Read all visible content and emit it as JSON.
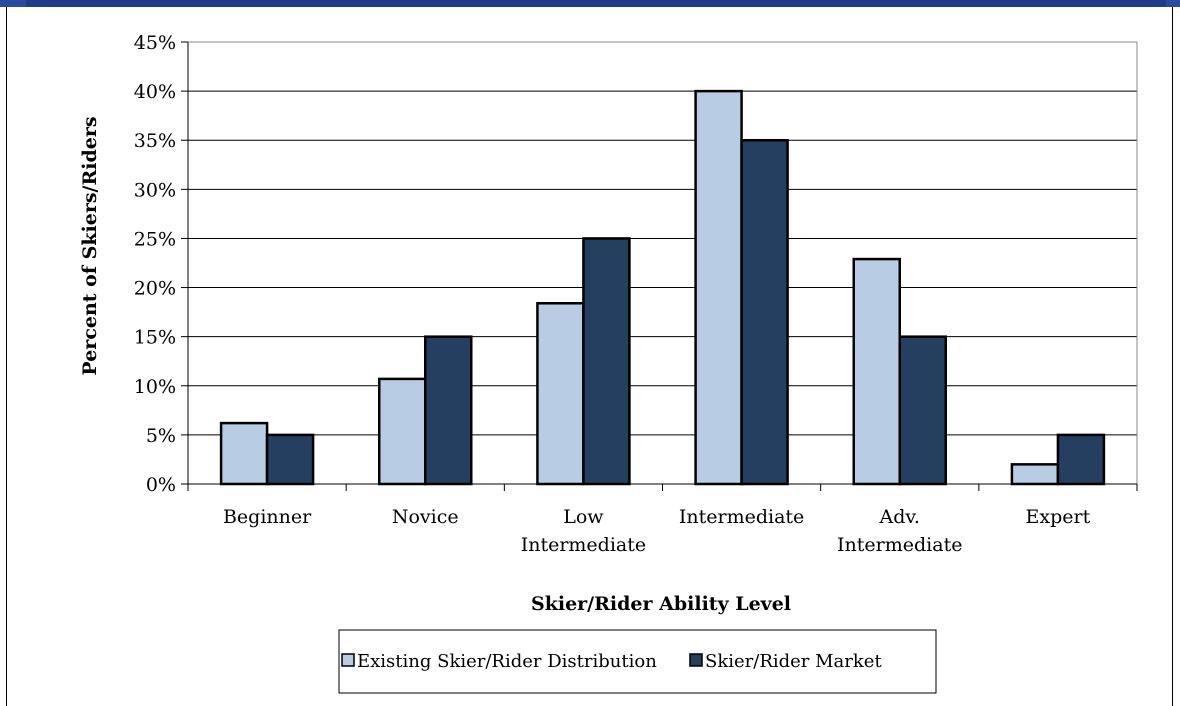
{
  "colors": {
    "series1": "#b8cce4",
    "series2": "#243f60",
    "stroke": "#000000",
    "gridline": "#000000",
    "topbar": "#1f3c88"
  },
  "chart_data": {
    "type": "bar",
    "categories": [
      [
        "Beginner"
      ],
      [
        "Novice"
      ],
      [
        "Low",
        "Intermediate"
      ],
      [
        "Intermediate"
      ],
      [
        "Adv.",
        "Intermediate"
      ],
      [
        "Expert"
      ]
    ],
    "series": [
      {
        "name": "Existing Skier/Rider Distribution",
        "values": [
          6.2,
          10.7,
          18.4,
          40,
          22.9,
          2
        ]
      },
      {
        "name": "Skier/Rider Market",
        "values": [
          5,
          15,
          25,
          35,
          15,
          5
        ]
      }
    ],
    "yticks": [
      "0%",
      "5%",
      "10%",
      "15%",
      "20%",
      "25%",
      "30%",
      "35%",
      "40%",
      "45%"
    ],
    "ylim": [
      0,
      45
    ],
    "xlabel": "Skier/Rider Ability Level",
    "ylabel": "Percent of Skiers/Riders",
    "grid": true,
    "legend_position": "bottom"
  }
}
